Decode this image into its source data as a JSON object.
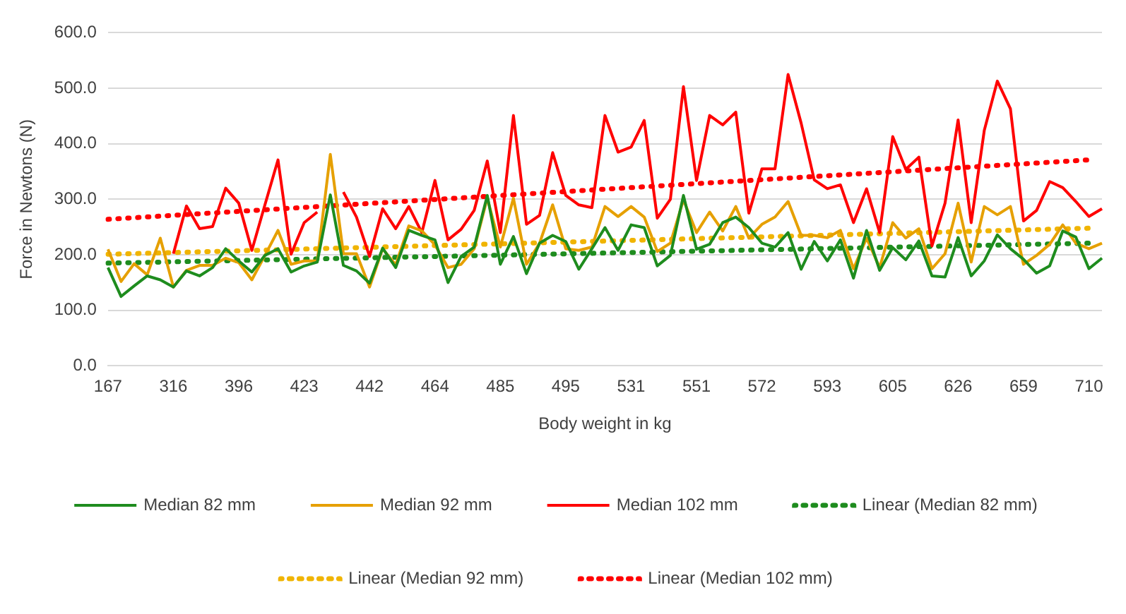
{
  "chart_data": {
    "type": "line",
    "xlabel": "Body weight in kg",
    "ylabel": "Force in Newtons (N)",
    "categories": [
      "167",
      null,
      null,
      null,
      null,
      "316",
      null,
      null,
      null,
      null,
      "396",
      null,
      null,
      null,
      null,
      "423",
      null,
      null,
      null,
      null,
      "442",
      null,
      null,
      null,
      null,
      "464",
      null,
      null,
      null,
      null,
      "485",
      null,
      null,
      null,
      null,
      "495",
      null,
      null,
      null,
      null,
      "531",
      null,
      null,
      null,
      null,
      "551",
      null,
      null,
      null,
      null,
      "572",
      null,
      null,
      null,
      null,
      "593",
      null,
      null,
      null,
      null,
      "605",
      null,
      null,
      null,
      null,
      "626",
      null,
      null,
      null,
      null,
      "659",
      null,
      null,
      null,
      null,
      "710",
      null
    ],
    "ylim": [
      0,
      600
    ],
    "yticks": [
      {
        "value": 0,
        "label": "0.0"
      },
      {
        "value": 100,
        "label": "100.0"
      },
      {
        "value": 200,
        "label": "200.0"
      },
      {
        "value": 300,
        "label": "300.0"
      },
      {
        "value": 400,
        "label": "400.0"
      },
      {
        "value": 500,
        "label": "500.0"
      },
      {
        "value": 600,
        "label": "600.0"
      }
    ],
    "grid": "y",
    "legend": "bottom",
    "marker": "none",
    "series": [
      {
        "name": "Median 82 mm",
        "color": "#1e8c1e",
        "line_style": "solid",
        "values": [
          177,
          125,
          144,
          162,
          155,
          142,
          171,
          162,
          177,
          211,
          189,
          169,
          199,
          211,
          169,
          180,
          187,
          308,
          181,
          171,
          149,
          212,
          177,
          244,
          235,
          227,
          150,
          197,
          214,
          307,
          183,
          233,
          166,
          221,
          235,
          224,
          174,
          211,
          249,
          208,
          254,
          249,
          180,
          199,
          307,
          210,
          219,
          258,
          268,
          249,
          221,
          214,
          240,
          174,
          224,
          189,
          227,
          158,
          244,
          172,
          213,
          191,
          225,
          162,
          160,
          231,
          162,
          189,
          236,
          211,
          192,
          167,
          180,
          243,
          232,
          175,
          194
        ]
      },
      {
        "name": "Median 92 mm",
        "color": "#e6a000",
        "line_style": "solid",
        "values": [
          210,
          152,
          184,
          164,
          230,
          142,
          172,
          181,
          181,
          194,
          186,
          155,
          199,
          244,
          183,
          189,
          189,
          381,
          202,
          202,
          142,
          211,
          182,
          252,
          243,
          218,
          177,
          183,
          211,
          302,
          214,
          302,
          183,
          221,
          290,
          211,
          208,
          214,
          287,
          269,
          287,
          268,
          206,
          221,
          299,
          240,
          277,
          243,
          287,
          230,
          255,
          268,
          296,
          235,
          235,
          231,
          244,
          175,
          230,
          177,
          258,
          230,
          247,
          175,
          202,
          293,
          187,
          287,
          272,
          287,
          183,
          199,
          219,
          254,
          221,
          211,
          221
        ]
      },
      {
        "name": "Median 102 mm",
        "color": "#ff0000",
        "line_style": "solid",
        "values": [
          null,
          null,
          null,
          null,
          null,
          202,
          288,
          247,
          251,
          320,
          293,
          208,
          290,
          371,
          201,
          258,
          277,
          null,
          313,
          268,
          197,
          283,
          247,
          287,
          240,
          334,
          227,
          246,
          280,
          369,
          240,
          451,
          255,
          271,
          384,
          307,
          290,
          285,
          451,
          385,
          394,
          442,
          266,
          300,
          503,
          334,
          451,
          434,
          457,
          275,
          355,
          355,
          525,
          437,
          335,
          319,
          326,
          258,
          319,
          240,
          413,
          354,
          376,
          216,
          293,
          443,
          258,
          424,
          513,
          463,
          261,
          280,
          332,
          321,
          296,
          269,
          283
        ]
      },
      {
        "name": "Linear (Median 82 mm)",
        "color": "#1e8c1e",
        "line_style": "dotted",
        "x": [
          "167",
          "710"
        ],
        "values": [
          185,
          221
        ]
      },
      {
        "name": "Linear (Median 92 mm)",
        "color": "#f0b400",
        "line_style": "dotted",
        "x": [
          "167",
          "710"
        ],
        "values": [
          201,
          248
        ]
      },
      {
        "name": "Linear (Median 102 mm)",
        "color": "#ff0000",
        "line_style": "dotted",
        "x": [
          "167",
          "710"
        ],
        "values": [
          264,
          371
        ]
      }
    ]
  }
}
